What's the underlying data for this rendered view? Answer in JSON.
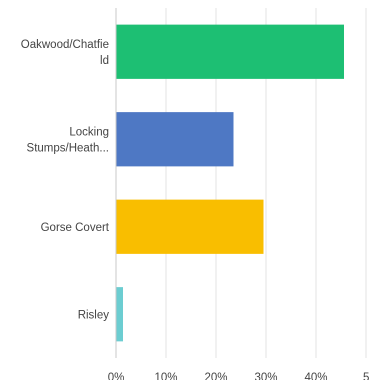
{
  "chart_data": {
    "type": "bar",
    "orientation": "horizontal",
    "categories": [
      [
        "Oakwood/Chatfie",
        "ld"
      ],
      [
        "Locking",
        "Stumps/Heath..."
      ],
      [
        "Gorse Covert"
      ],
      [
        "Risley"
      ]
    ],
    "values": [
      45.6,
      23.5,
      29.5,
      1.4
    ],
    "colors": [
      "#1dbf73",
      "#4e78c4",
      "#f9be00",
      "#6ccdd1"
    ],
    "xlim": [
      0,
      50
    ],
    "ticks": [
      "0%",
      "10%",
      "20%",
      "30%",
      "40%",
      "5"
    ],
    "tick_values": [
      0,
      10,
      20,
      30,
      40,
      50
    ],
    "grid": true,
    "title": "",
    "xlabel": "",
    "ylabel": ""
  }
}
